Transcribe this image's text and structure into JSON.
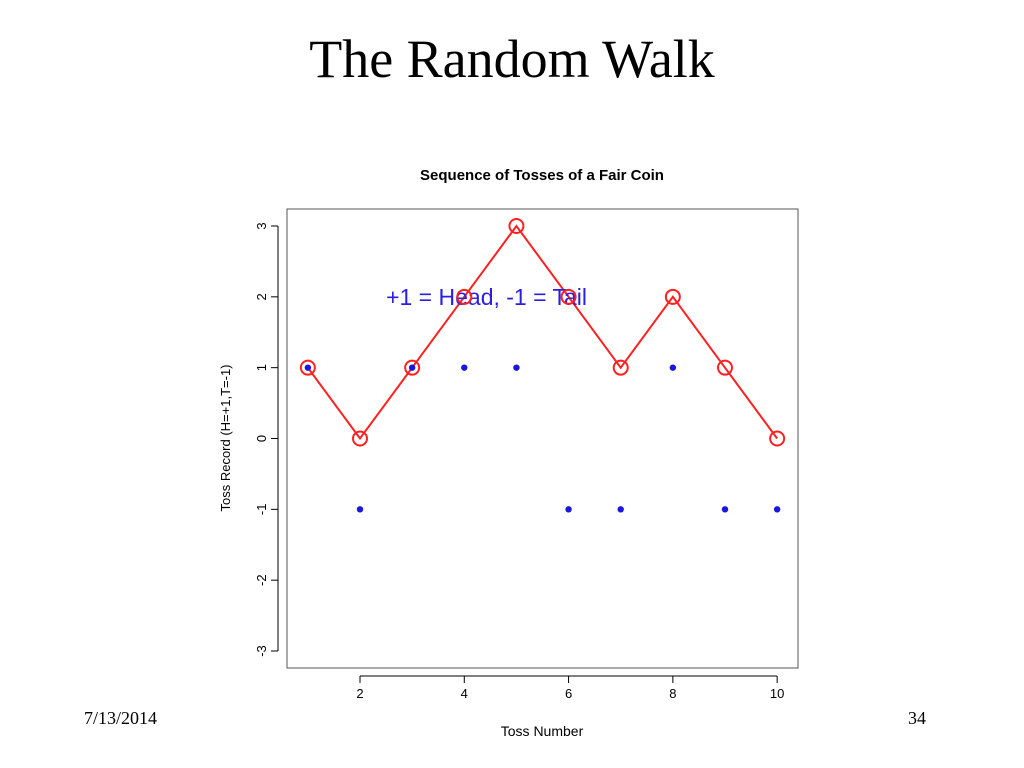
{
  "slide": {
    "title": "The Random Walk",
    "date": "7/13/2014",
    "page_number": "34"
  },
  "chart_data": {
    "type": "scatter",
    "title": "Sequence of Tosses of a Fair Coin",
    "xlabel": "Toss Number",
    "ylabel": "Toss Record (H=+1,T=-1)",
    "xlim": [
      0.6,
      10.4
    ],
    "ylim": [
      -3.24,
      3.24
    ],
    "xticks": [
      2,
      4,
      6,
      8,
      10
    ],
    "yticks": [
      -3,
      -2,
      -1,
      0,
      1,
      2,
      3
    ],
    "annotation": {
      "text": "+1 = Head, -1 = Tail",
      "x": 2.5,
      "y": 2.0
    },
    "series": [
      {
        "kind": "points",
        "color": "#1a16e0",
        "x": [
          1,
          2,
          3,
          4,
          5,
          6,
          7,
          8,
          9,
          10
        ],
        "y": [
          1,
          -1,
          1,
          1,
          1,
          -1,
          -1,
          1,
          -1,
          -1
        ]
      },
      {
        "kind": "line-open-circles",
        "color": "#ff2020",
        "x": [
          1,
          2,
          3,
          4,
          5,
          6,
          7,
          8,
          9,
          10
        ],
        "y": [
          1,
          0,
          1,
          2,
          3,
          2,
          1,
          2,
          1,
          0
        ]
      }
    ]
  }
}
